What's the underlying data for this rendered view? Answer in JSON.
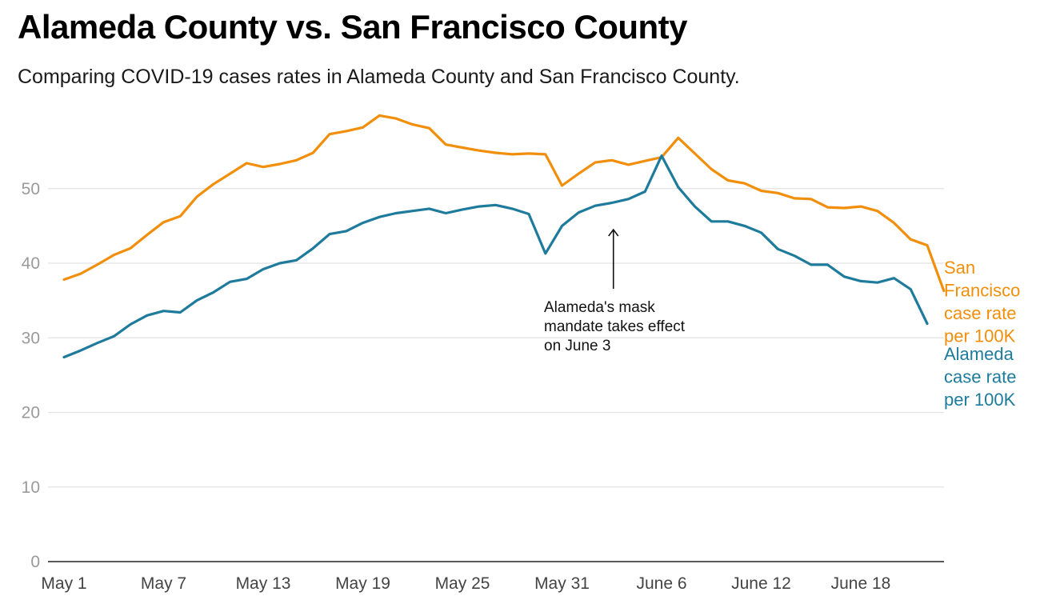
{
  "chart_data": {
    "type": "line",
    "title": "Alameda County vs. San Francisco County",
    "subtitle": "Comparing COVID-19 cases rates in Alameda County and San Francisco County.",
    "x": [
      "May 1",
      "May 2",
      "May 3",
      "May 4",
      "May 5",
      "May 6",
      "May 7",
      "May 8",
      "May 9",
      "May 10",
      "May 11",
      "May 12",
      "May 13",
      "May 14",
      "May 15",
      "May 16",
      "May 17",
      "May 18",
      "May 19",
      "May 20",
      "May 21",
      "May 22",
      "May 23",
      "May 24",
      "May 25",
      "May 26",
      "May 27",
      "May 28",
      "May 29",
      "May 30",
      "May 31",
      "June 1",
      "June 2",
      "June 3",
      "June 4",
      "June 5",
      "June 6",
      "June 7",
      "June 8",
      "June 9",
      "June 10",
      "June 11",
      "June 12",
      "June 13",
      "June 14",
      "June 15",
      "June 16",
      "June 17",
      "June 18",
      "June 19",
      "June 20",
      "June 21",
      "June 22",
      "June 23",
      "June 24",
      "June 25"
    ],
    "x_ticks": [
      "May 1",
      "May 7",
      "May 13",
      "May 19",
      "May 25",
      "May 31",
      "June 6",
      "June 12",
      "June 18"
    ],
    "x_tick_index": [
      0,
      6,
      12,
      18,
      24,
      30,
      36,
      42,
      48
    ],
    "yticks": [
      0,
      10,
      20,
      30,
      40,
      50
    ],
    "ylim": [
      0,
      60
    ],
    "grid": true,
    "series": [
      {
        "name": "San Francisco case rate per 100K",
        "label_lines": [
          "San",
          "Francisco",
          "case rate",
          "per 100K"
        ],
        "color": "#f18f0c",
        "values": [
          37.8,
          38.6,
          39.8,
          41.1,
          42.0,
          43.8,
          45.5,
          46.3,
          48.9,
          50.6,
          52.0,
          53.4,
          52.9,
          53.3,
          53.8,
          54.8,
          57.3,
          57.7,
          58.2,
          59.8,
          59.4,
          58.6,
          58.1,
          55.9,
          55.5,
          55.1,
          54.8,
          54.6,
          54.7,
          54.6,
          50.4,
          52.0,
          53.5,
          53.8,
          53.2,
          53.7,
          54.2,
          56.8,
          54.7,
          52.6,
          51.1,
          50.7,
          49.7,
          49.4,
          48.7,
          48.6,
          47.5,
          47.4,
          47.6,
          47.0,
          45.4,
          43.2,
          42.4,
          36.3,
          null,
          null
        ]
      },
      {
        "name": "Alameda case rate per 100K",
        "label_lines": [
          "Alameda",
          "case rate",
          "per 100K"
        ],
        "color": "#1e7b9c",
        "values": [
          27.4,
          28.3,
          29.3,
          30.2,
          31.8,
          33.0,
          33.6,
          33.4,
          35.0,
          36.1,
          37.5,
          37.9,
          39.2,
          40.0,
          40.4,
          42.0,
          43.9,
          44.3,
          45.4,
          46.2,
          46.7,
          47.0,
          47.3,
          46.7,
          47.2,
          47.6,
          47.8,
          47.3,
          46.6,
          41.3,
          45.0,
          46.8,
          47.7,
          48.1,
          48.6,
          49.6,
          54.4,
          50.2,
          47.6,
          45.6,
          45.6,
          45.0,
          44.1,
          41.9,
          41.0,
          39.8,
          39.8,
          38.2,
          37.6,
          37.4,
          38.0,
          36.5,
          31.9,
          null,
          null,
          null
        ]
      }
    ],
    "annotation": {
      "lines": [
        "Alameda's mask",
        "mandate takes effect",
        "on June 3"
      ],
      "x_index": 33,
      "y_value": 44.5
    }
  }
}
